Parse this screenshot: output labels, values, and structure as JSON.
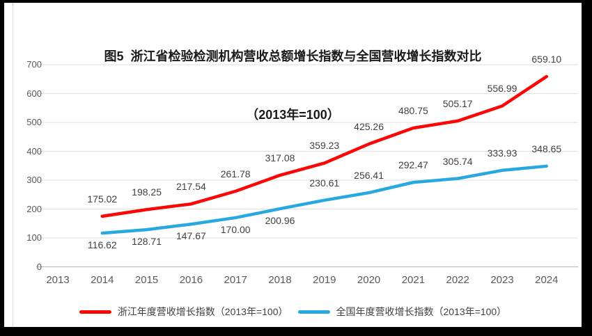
{
  "title": {
    "line1": "图5  浙江省检验检测机构营收总额增长指数与全国营收增长指数对比",
    "line2": "（2013年=100）"
  },
  "chart_data": {
    "type": "line",
    "categories": [
      "2013",
      "2014",
      "2015",
      "2016",
      "2017",
      "2018",
      "2019",
      "2020",
      "2021",
      "2022",
      "2023",
      "2024"
    ],
    "yticks": [
      0,
      100,
      200,
      300,
      400,
      500,
      600,
      700
    ],
    "ylim": [
      0,
      700
    ],
    "grid": true,
    "legend_position": "bottom",
    "series": [
      {
        "name": "浙江年度营收增长指数（2013年=100）",
        "color": "#FB0505",
        "start_category": "2014",
        "values": [
          175.02,
          198.25,
          217.54,
          261.78,
          317.08,
          359.23,
          425.26,
          480.75,
          505.17,
          556.99,
          659.1
        ],
        "label_sides": [
          "above",
          "above",
          "above",
          "above",
          "above",
          "above",
          "above",
          "above",
          "above",
          "above",
          "above"
        ]
      },
      {
        "name": "全国年度营收增长指数（2013年=100）",
        "color": "#27A9E0",
        "start_category": "2014",
        "values": [
          116.62,
          128.71,
          147.67,
          170.0,
          200.96,
          230.61,
          256.41,
          292.47,
          305.74,
          333.93,
          348.65
        ],
        "label_sides": [
          "below",
          "below",
          "below",
          "below",
          "below",
          "above",
          "above",
          "above",
          "above",
          "above",
          "above"
        ]
      }
    ]
  },
  "colors": {
    "frame": "#000000",
    "background": "#FFFFFF",
    "gridline": "#E3E3E3",
    "axis_line": "#BFBFBF",
    "axis_label": "#595959",
    "data_label": "#404040",
    "title": "#1A1A1A"
  }
}
